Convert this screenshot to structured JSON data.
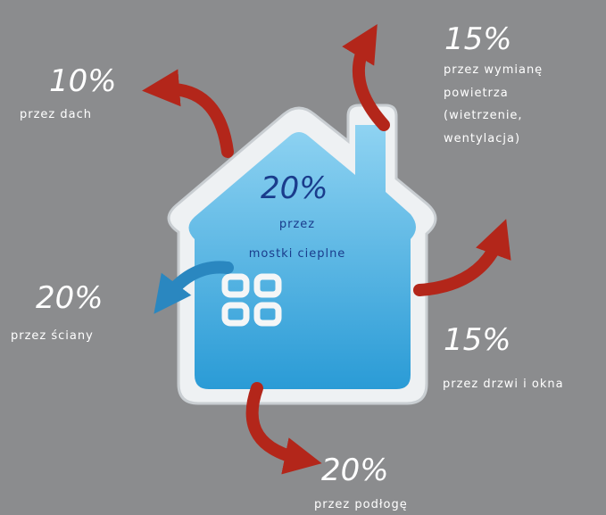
{
  "roof": {
    "percent": "10%",
    "label": "przez dach"
  },
  "ventilation": {
    "percent": "15%",
    "label": [
      "przez wymianę",
      "powietrza",
      "(wietrzenie,",
      "wentylacja)"
    ]
  },
  "thermal_bridges": {
    "percent": "20%",
    "label": [
      "przez",
      "mostki cieplne"
    ]
  },
  "walls": {
    "percent": "20%",
    "label": "przez ściany"
  },
  "doors_windows": {
    "percent": "15%",
    "label": "przez drzwi i okna"
  },
  "floor": {
    "percent": "20%",
    "label": "przez podłogę"
  }
}
